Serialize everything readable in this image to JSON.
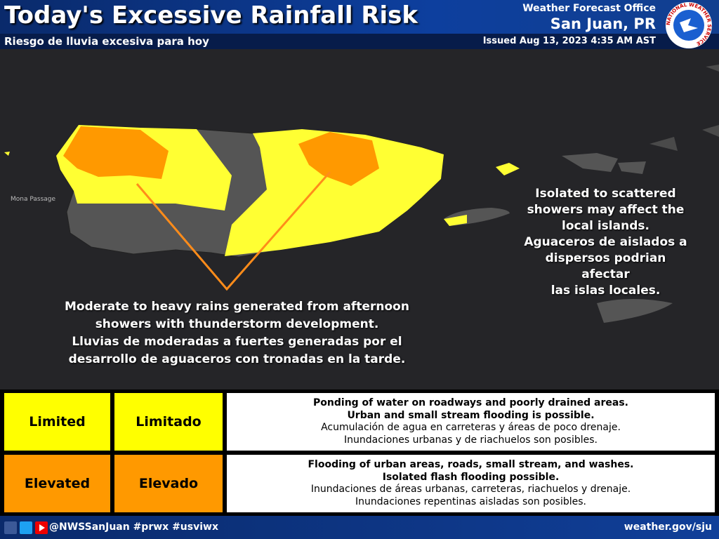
{
  "header": {
    "title": "Today's Excessive Rainfall Risk",
    "subtitle": "Riesgo de lluvia excesiva para hoy",
    "office": "Weather Forecast Office",
    "location": "San Juan, PR",
    "issued": "Issued Aug 13, 2023 4:35 AM AST",
    "logo_text": "NATIONAL WEATHER SERVICE"
  },
  "map": {
    "place_label": "Mona Passage",
    "annotation_west": [
      "Moderate to heavy rains generated from afternoon",
      "showers with thunderstorm development.",
      "Lluvias de moderadas a fuertes generadas por el",
      "desarrollo de aguaceros con tronadas en la tarde."
    ],
    "annotation_east": [
      "Isolated to scattered",
      "showers may affect the",
      "local islands.",
      "Aguaceros de aislados a",
      "dispersos podrian afectar",
      "las islas locales."
    ]
  },
  "legend": {
    "rows": [
      {
        "category_en": "Limited",
        "category_es": "Limitado",
        "color": "#ffff00",
        "description": [
          "Ponding of water on roadways and poorly drained areas.",
          "Urban and small stream flooding is possible.",
          "Acumulación de agua en carreteras y áreas de poco drenaje.",
          "Inundaciones urbanas y de riachuelos son posibles."
        ]
      },
      {
        "category_en": "Elevated",
        "category_es": "Elevado",
        "color": "#ff9900",
        "description": [
          "Flooding of urban areas, roads, small stream, and washes.",
          "Isolated flash flooding possible.",
          "Inundaciones de áreas urbanas, carreteras, riachuelos y drenaje.",
          "Inundaciones repentinas aisladas son posibles."
        ]
      }
    ]
  },
  "footer": {
    "social": "@NWSSanJuan #prwx #usviwx",
    "url": "weather.gov/sju"
  }
}
